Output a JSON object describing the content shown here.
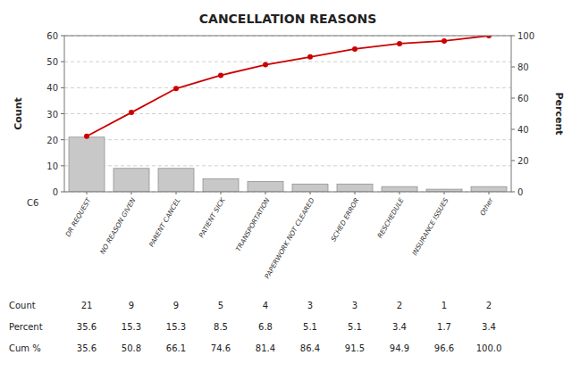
{
  "chart_data": {
    "type": "bar",
    "title": "CANCELLATION REASONS",
    "categories": [
      "DR REQUEST",
      "NO REASON GIVEN",
      "PARENT CANCEL",
      "PATIENT SICK",
      "TRANSPORTATION",
      "PAPERWORK NOT CLEARED",
      "SCHED ERROR",
      "RESCHEDULE",
      "INSURANCE ISSUES",
      "Other"
    ],
    "series": [
      {
        "type": "bar",
        "color": "#c8c8c8",
        "values": [
          21,
          9,
          9,
          5,
          4,
          3,
          3,
          2,
          1,
          2
        ]
      },
      {
        "type": "line",
        "axis": "y2",
        "color": "#cc0000",
        "marker": "circle",
        "values": [
          35.6,
          50.8,
          66.1,
          74.6,
          81.4,
          86.4,
          91.5,
          94.9,
          96.6,
          100.0
        ]
      }
    ],
    "xlabel": "C6",
    "ylabel": "Count",
    "y2label": "Percent",
    "ylim": [
      0,
      60
    ],
    "yticks": [
      0,
      10,
      20,
      30,
      40,
      50,
      60
    ],
    "y2lim": [
      0,
      100
    ],
    "y2ticks": [
      0,
      20,
      40,
      60,
      80,
      100
    ],
    "grid": true,
    "table": [
      {
        "name": "Count",
        "values": [
          21,
          9,
          9,
          5,
          4,
          3,
          3,
          2,
          1,
          2
        ]
      },
      {
        "name": "Percent",
        "values": [
          35.6,
          15.3,
          15.3,
          8.5,
          6.8,
          5.1,
          5.1,
          3.4,
          1.7,
          3.4
        ]
      },
      {
        "name": "Cum %",
        "values": [
          35.6,
          50.8,
          66.1,
          74.6,
          81.4,
          86.4,
          91.5,
          94.9,
          96.6,
          100.0
        ],
        "value_labels": [
          "35.6",
          "50.8",
          "66.1",
          "74.6",
          "81.4",
          "86.4",
          "91.5",
          "94.9",
          "96.6",
          "100.0"
        ]
      }
    ]
  }
}
